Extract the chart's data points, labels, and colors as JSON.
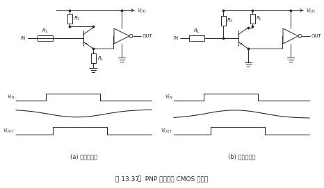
{
  "bg_color": "#ffffff",
  "line_color": "#2a2a2a",
  "caption_main": "图 13.37   PNP 晶体管与 CMOS 的接口",
  "label_a": "(a) 发射极接地",
  "label_b": "(b) 射极跟随器"
}
